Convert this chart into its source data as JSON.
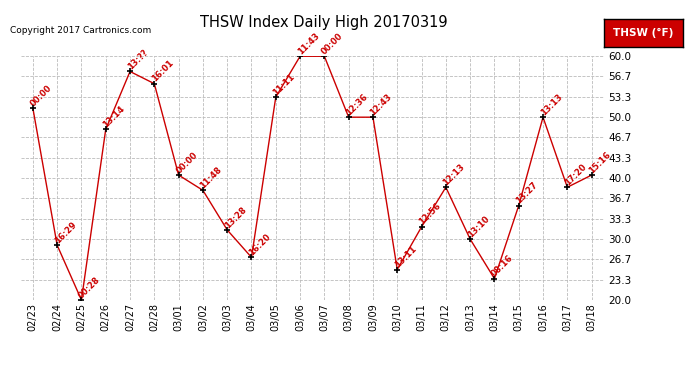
{
  "title": "THSW Index Daily High 20170319",
  "copyright": "Copyright 2017 Cartronics.com",
  "legend_label": "THSW (°F)",
  "x_labels": [
    "02/23",
    "02/24",
    "02/25",
    "02/26",
    "02/27",
    "02/28",
    "03/01",
    "03/02",
    "03/03",
    "03/04",
    "03/05",
    "03/06",
    "03/07",
    "03/08",
    "03/09",
    "03/10",
    "03/11",
    "03/12",
    "03/13",
    "03/14",
    "03/15",
    "03/16",
    "03/17",
    "03/18"
  ],
  "y_values": [
    51.5,
    29.0,
    20.0,
    48.0,
    57.5,
    55.5,
    40.5,
    38.0,
    31.5,
    27.0,
    53.3,
    60.0,
    60.0,
    50.0,
    50.0,
    25.0,
    32.0,
    38.5,
    30.0,
    23.5,
    35.5,
    50.0,
    38.5,
    40.5
  ],
  "time_labels": [
    "00:00",
    "16:29",
    "00:28",
    "13:14",
    "13:??",
    "16:01",
    "00:00",
    "11:48",
    "13:28",
    "16:20",
    "11:11",
    "11:43",
    "00:00",
    "12:36",
    "12:43",
    "13:11",
    "12:56",
    "12:13",
    "13:10",
    "08:16",
    "13:27",
    "13:13",
    "17:20",
    "15:16"
  ],
  "ylim": [
    20.0,
    60.0
  ],
  "yticks": [
    20.0,
    23.3,
    26.7,
    30.0,
    33.3,
    36.7,
    40.0,
    43.3,
    46.7,
    50.0,
    53.3,
    56.7,
    60.0
  ],
  "line_color": "#cc0000",
  "marker_color": "#000000",
  "label_color": "#cc0000",
  "bg_color": "#ffffff",
  "grid_color": "#bbbbbb",
  "title_color": "#000000",
  "legend_bg": "#cc0000",
  "legend_text_color": "#ffffff",
  "fig_width": 6.9,
  "fig_height": 3.75,
  "dpi": 100
}
